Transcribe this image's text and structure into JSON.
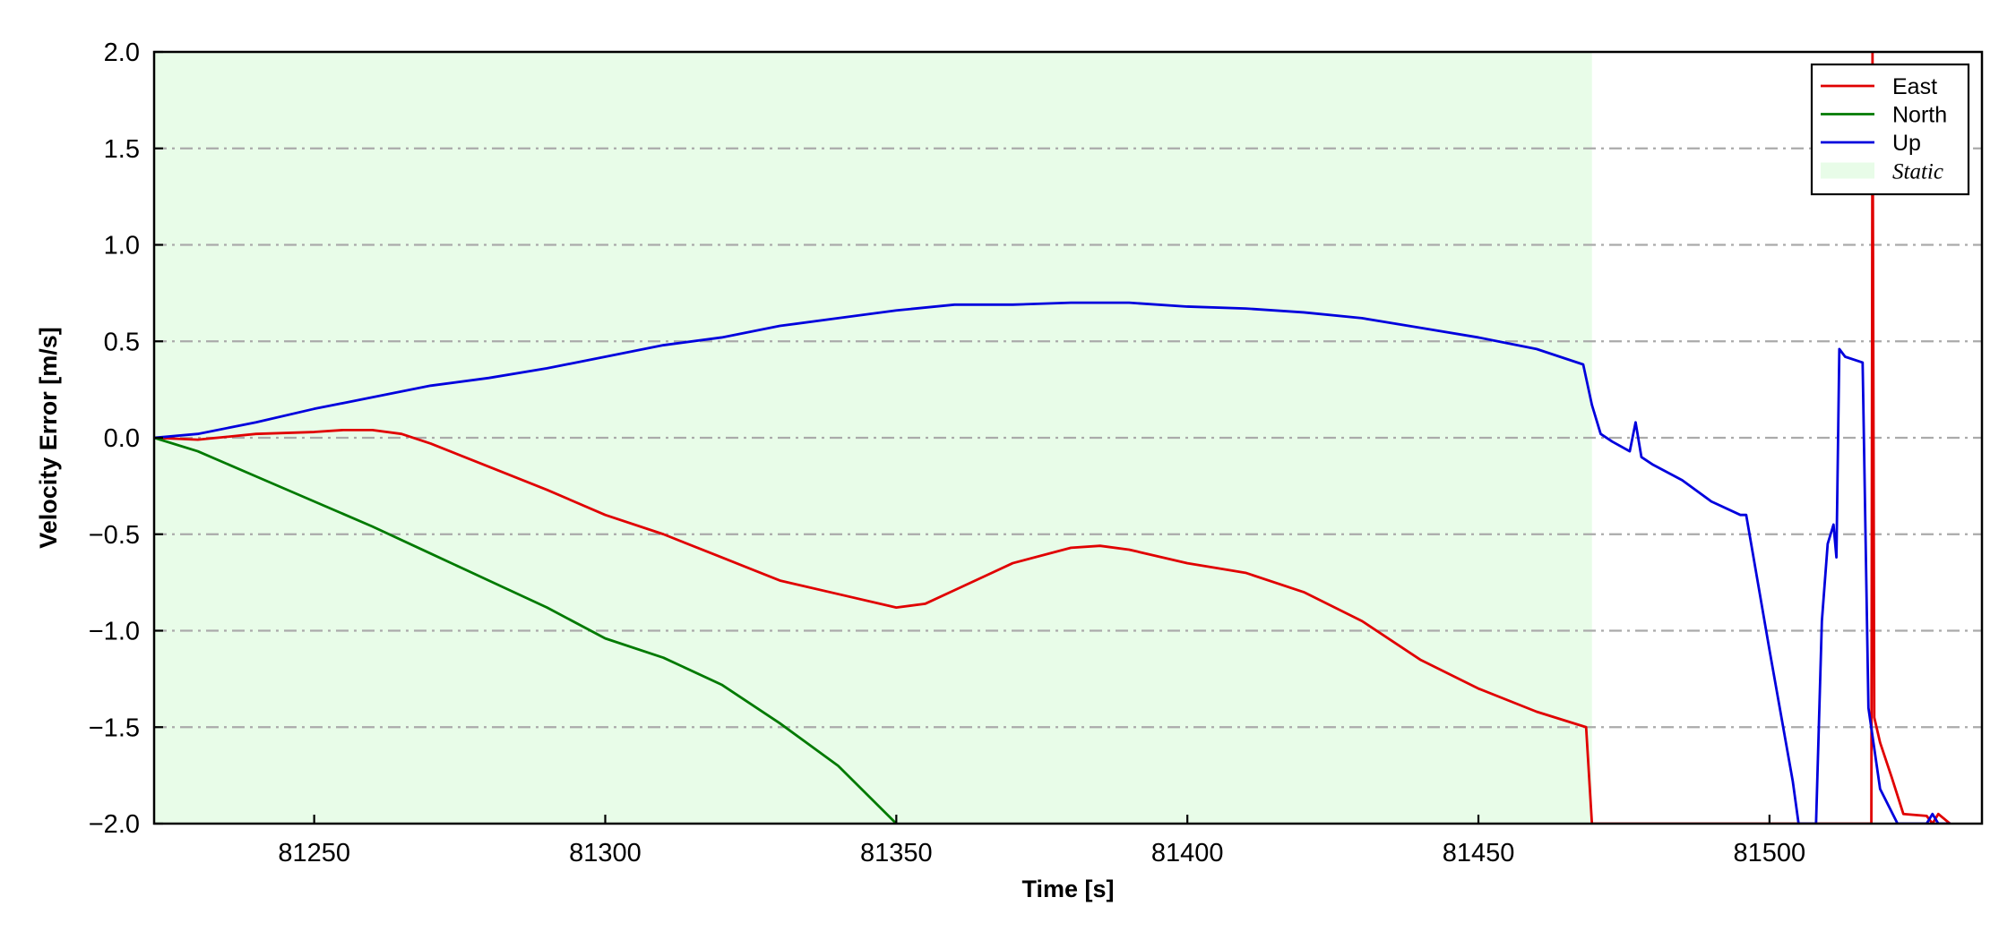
{
  "chart_data": {
    "type": "line",
    "title": "",
    "xlabel": "Time [s]",
    "ylabel": "Velocity Error [m/s]",
    "xlim": [
      81222.5,
      81536.5
    ],
    "ylim": [
      -2.0,
      2.0
    ],
    "xticks": [
      81250,
      81300,
      81350,
      81400,
      81450,
      81500
    ],
    "yticks": [
      2.0,
      1.5,
      1.0,
      0.5,
      0.0,
      -0.5,
      -1.0,
      -1.5,
      -2.0
    ],
    "ytick_labels": [
      "2.0",
      "1.5",
      "1.0",
      "0.5",
      "0.0",
      "−0.5",
      "−1.0",
      "−1.5",
      "−2.0"
    ],
    "grid": "horizontal dash-dot",
    "legend_position": "top-right",
    "static_region": {
      "label": "Static",
      "x": [
        81222.5,
        81469.5
      ],
      "color": "#e8fce8"
    },
    "series": [
      {
        "name": "East",
        "color": "#e00000",
        "x": [
          81222.5,
          81230,
          81240,
          81250,
          81255,
          81260,
          81265,
          81270,
          81280,
          81290,
          81300,
          81310,
          81320,
          81330,
          81340,
          81350,
          81355,
          81360,
          81370,
          81380,
          81385,
          81390,
          81400,
          81410,
          81420,
          81430,
          81440,
          81450,
          81460,
          81468.5,
          81469.5,
          81517.5,
          81517.7,
          81518,
          81519,
          81521,
          81523,
          81527,
          81528,
          81529,
          81531
        ],
        "y": [
          0.0,
          -0.01,
          0.02,
          0.03,
          0.04,
          0.04,
          0.02,
          -0.03,
          -0.15,
          -0.27,
          -0.4,
          -0.5,
          -0.62,
          -0.74,
          -0.81,
          -0.88,
          -0.86,
          -0.79,
          -0.65,
          -0.57,
          -0.56,
          -0.58,
          -0.65,
          -0.7,
          -0.8,
          -0.95,
          -1.15,
          -1.3,
          -1.42,
          -1.5,
          -2.0,
          -2.0,
          2.0,
          -1.45,
          -1.58,
          -1.76,
          -1.95,
          -1.96,
          -2.0,
          -1.95,
          -2.0
        ]
      },
      {
        "name": "North",
        "color": "#007a00",
        "x": [
          81222.5,
          81230,
          81240,
          81250,
          81260,
          81270,
          81280,
          81290,
          81300,
          81310,
          81320,
          81330,
          81340,
          81350
        ],
        "y": [
          0.0,
          -0.07,
          -0.2,
          -0.33,
          -0.46,
          -0.6,
          -0.74,
          -0.88,
          -1.04,
          -1.14,
          -1.28,
          -1.48,
          -1.7,
          -2.0
        ]
      },
      {
        "name": "Up",
        "color": "#0000dd",
        "x": [
          81222.5,
          81230,
          81240,
          81250,
          81260,
          81270,
          81280,
          81290,
          81300,
          81310,
          81320,
          81330,
          81340,
          81350,
          81360,
          81370,
          81380,
          81390,
          81400,
          81410,
          81420,
          81430,
          81440,
          81450,
          81460,
          81468,
          81469.5,
          81471,
          81473,
          81476,
          81477,
          81478,
          81480,
          81485,
          81490,
          81495,
          81496,
          81500,
          81504,
          81505,
          81506,
          81507,
          81508,
          81509,
          81510,
          81511,
          81511.5,
          81512,
          81513,
          81516,
          81517,
          81519,
          81522,
          81524,
          81525,
          81527,
          81528,
          81529,
          81531
        ],
        "y": [
          0.0,
          0.02,
          0.08,
          0.15,
          0.21,
          0.27,
          0.31,
          0.36,
          0.42,
          0.48,
          0.52,
          0.58,
          0.62,
          0.66,
          0.69,
          0.69,
          0.7,
          0.7,
          0.68,
          0.67,
          0.65,
          0.62,
          0.57,
          0.52,
          0.46,
          0.38,
          0.17,
          0.02,
          -0.02,
          -0.07,
          0.08,
          -0.1,
          -0.14,
          -0.22,
          -0.33,
          -0.4,
          -0.4,
          -1.1,
          -1.78,
          -2.0,
          -2.0,
          -2.0,
          -2.0,
          -0.95,
          -0.55,
          -0.45,
          -0.62,
          0.46,
          0.42,
          0.39,
          -1.4,
          -1.82,
          -2.0,
          -2.0,
          -2.0,
          -2.0,
          -1.95,
          -2.0,
          -2.0
        ]
      }
    ]
  }
}
